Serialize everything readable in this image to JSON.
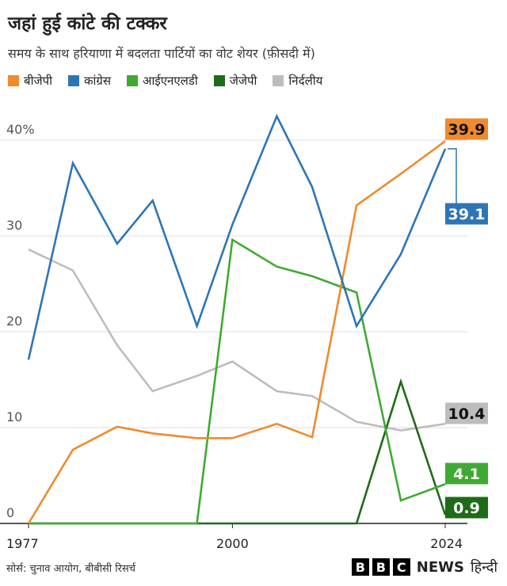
{
  "header": {
    "title": "जहां हुई कांटे की टक्कर",
    "subtitle": "समय के साथ हरियाणा में बदलता पार्टियों का वोट शेयर (फ़ीसदी में)"
  },
  "footer": {
    "source": "सोर्स: चुनाव आयोग, बीबीसी रिसर्च",
    "brand_letters": [
      "B",
      "B",
      "C"
    ],
    "brand_news": "NEWS",
    "brand_lang": "हिन्दी"
  },
  "chart_data": {
    "type": "line",
    "xlabel": "",
    "ylabel": "",
    "x": [
      1977,
      1982,
      1987,
      1991,
      1996,
      2000,
      2005,
      2009,
      2014,
      2019,
      2024
    ],
    "x_tick_labels": [
      "1977",
      "2000",
      "2024"
    ],
    "x_tick_values": [
      1977,
      2000,
      2024
    ],
    "ylim": [
      0,
      40
    ],
    "y_ticks": [
      0,
      10,
      20,
      30,
      40
    ],
    "y_tick_labels": [
      "0",
      "10",
      "20",
      "30",
      "40%"
    ],
    "grid": true,
    "legend_position": "top",
    "series": [
      {
        "name": "बीजेपी",
        "color": "#F08A2C",
        "values": [
          0,
          7.7,
          10.1,
          9.4,
          8.9,
          8.9,
          10.4,
          9.0,
          33.2,
          36.5,
          39.9
        ],
        "end_label": "39.9"
      },
      {
        "name": "कांग्रेस",
        "color": "#2E75B6",
        "values": [
          17.1,
          37.6,
          29.2,
          33.7,
          20.6,
          31.2,
          42.5,
          35.1,
          20.6,
          28.1,
          39.1
        ],
        "end_label": "39.1"
      },
      {
        "name": "आईएनएलडी",
        "color": "#3FAA33",
        "values": [
          0,
          0,
          0,
          0,
          0,
          29.6,
          26.8,
          25.8,
          24.1,
          2.4,
          4.1
        ],
        "end_label": "4.1"
      },
      {
        "name": "जेजेपी",
        "color": "#1E6B17",
        "values": [
          0,
          0,
          0,
          0,
          0,
          0,
          0,
          0,
          0,
          14.8,
          0.9
        ],
        "end_label": "0.9"
      },
      {
        "name": "निर्दलीय",
        "color": "#BDBDBD",
        "values": [
          28.6,
          26.4,
          18.6,
          13.8,
          15.4,
          16.9,
          13.8,
          13.3,
          10.6,
          9.7,
          10.4
        ],
        "end_label": "10.4"
      }
    ]
  }
}
